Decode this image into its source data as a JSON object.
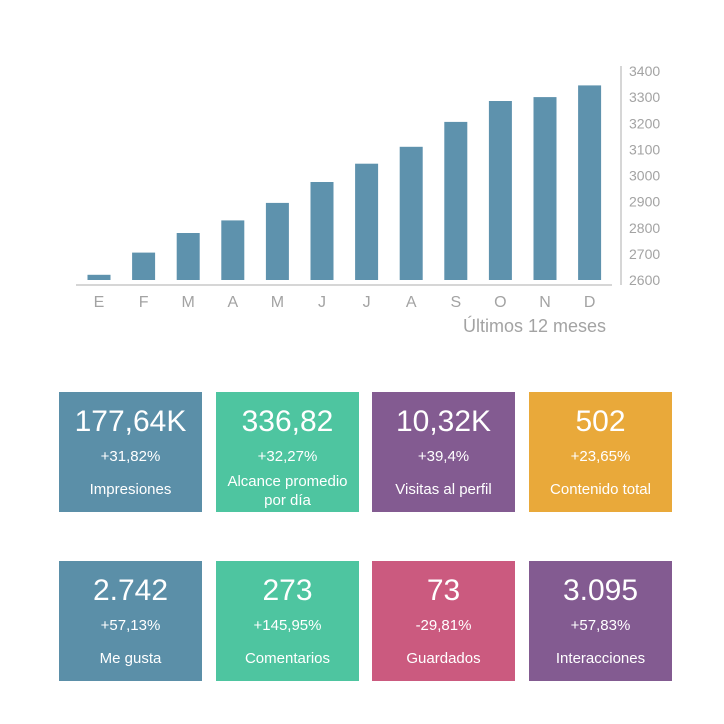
{
  "chart_data": {
    "type": "bar",
    "categories": [
      "E",
      "F",
      "M",
      "A",
      "M",
      "J",
      "J",
      "A",
      "S",
      "O",
      "N",
      "D"
    ],
    "values": [
      2620,
      2705,
      2780,
      2828,
      2895,
      2975,
      3045,
      3110,
      3205,
      3285,
      3300,
      3345
    ],
    "xlabel": "Últimos 12 meses",
    "ylabel": "",
    "ylim": [
      2600,
      3400
    ],
    "yticks": [
      2600,
      2700,
      2800,
      2900,
      3000,
      3100,
      3200,
      3300,
      3400
    ],
    "bar_color": "#5e92ad",
    "axis_position": "right",
    "grid": false
  },
  "cards": [
    {
      "value": "177,64K",
      "change": "+31,82%",
      "label": "Impresiones",
      "color": "#5b8fa8"
    },
    {
      "value": "336,82",
      "change": "+32,27%",
      "label": "Alcance promedio por día",
      "color": "#4ec5a0"
    },
    {
      "value": "10,32K",
      "change": "+39,4%",
      "label": "Visitas al perfil",
      "color": "#835b91"
    },
    {
      "value": "502",
      "change": "+23,65%",
      "label": "Contenido total",
      "color": "#e9a93a"
    },
    {
      "value": "2.742",
      "change": "+57,13%",
      "label": "Me gusta",
      "color": "#5b8fa8"
    },
    {
      "value": "273",
      "change": "+145,95%",
      "label": "Comentarios",
      "color": "#4ec5a0"
    },
    {
      "value": "73",
      "change": "-29,81%",
      "label": "Guardados",
      "color": "#cb5a7f"
    },
    {
      "value": "3.095",
      "change": "+57,83%",
      "label": "Interacciones",
      "color": "#835b91"
    }
  ]
}
